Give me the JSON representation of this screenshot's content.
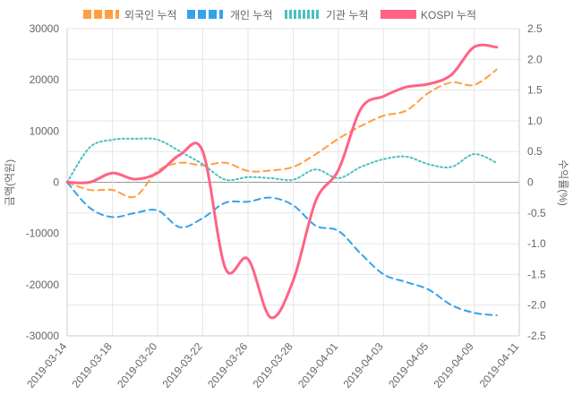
{
  "chart_data": {
    "type": "line",
    "x": [
      "2019-03-14",
      "2019-03-15",
      "2019-03-18",
      "2019-03-19",
      "2019-03-20",
      "2019-03-21",
      "2019-03-22",
      "2019-03-25",
      "2019-03-26",
      "2019-03-27",
      "2019-03-28",
      "2019-03-29",
      "2019-04-01",
      "2019-04-02",
      "2019-04-03",
      "2019-04-04",
      "2019-04-05",
      "2019-04-08",
      "2019-04-09",
      "2019-04-10",
      "2019-04-11"
    ],
    "x_tick_labels": [
      "2019-03-14",
      "2019-03-18",
      "2019-03-20",
      "2019-03-22",
      "2019-03-26",
      "2019-03-28",
      "2019-04-01",
      "2019-04-03",
      "2019-04-05",
      "2019-04-09",
      "2019-04-11"
    ],
    "ylabel_left": "금액(억원)",
    "ylabel_right": "수익률(%)",
    "ylim_left": [
      -30000,
      30000
    ],
    "ylim_right": [
      -2.5,
      2.5
    ],
    "yticks_left": [
      30000,
      20000,
      10000,
      0,
      -10000,
      -20000,
      -30000
    ],
    "yticks_right": [
      "2.5",
      "2.0",
      "1.5",
      "1.0",
      "0.5",
      "0",
      "-0.5",
      "-1.0",
      "-1.5",
      "-2.0",
      "-2.5"
    ],
    "grid": true,
    "legend_position": "top",
    "series": [
      {
        "name": "외국인 누적",
        "color": "#ff9f40",
        "dash": "dashed",
        "axis": "left",
        "values": [
          0,
          -1500,
          -1500,
          -2800,
          2200,
          3800,
          3300,
          3800,
          2200,
          2300,
          3000,
          5500,
          8500,
          11000,
          13000,
          14000,
          17500,
          19500,
          19000,
          22000,
          null
        ]
      },
      {
        "name": "개인 누적",
        "color": "#36a2eb",
        "dash": "dashed",
        "axis": "left",
        "values": [
          0,
          -5000,
          -6800,
          -6000,
          -5500,
          -8800,
          -7000,
          -4000,
          -3800,
          -3000,
          -4500,
          -8500,
          -9500,
          -14000,
          -18000,
          -19500,
          -21000,
          -24000,
          -25500,
          -26000,
          null
        ]
      },
      {
        "name": "기관 누적",
        "color": "#4bc0c0",
        "dash": "dotted",
        "axis": "left",
        "values": [
          0,
          6800,
          8300,
          8500,
          8300,
          6000,
          3500,
          500,
          1000,
          800,
          500,
          2500,
          800,
          3000,
          4500,
          5000,
          3500,
          3000,
          5500,
          3800,
          null
        ]
      },
      {
        "name": "KOSPI 누적",
        "color": "#ff6384",
        "dash": "solid",
        "axis": "right",
        "values": [
          0,
          0,
          0.15,
          0.05,
          0.15,
          0.45,
          0.5,
          -1.4,
          -1.25,
          -2.2,
          -1.6,
          -0.3,
          0.2,
          1.2,
          1.4,
          1.55,
          1.6,
          1.75,
          2.2,
          2.2,
          null
        ]
      }
    ]
  }
}
